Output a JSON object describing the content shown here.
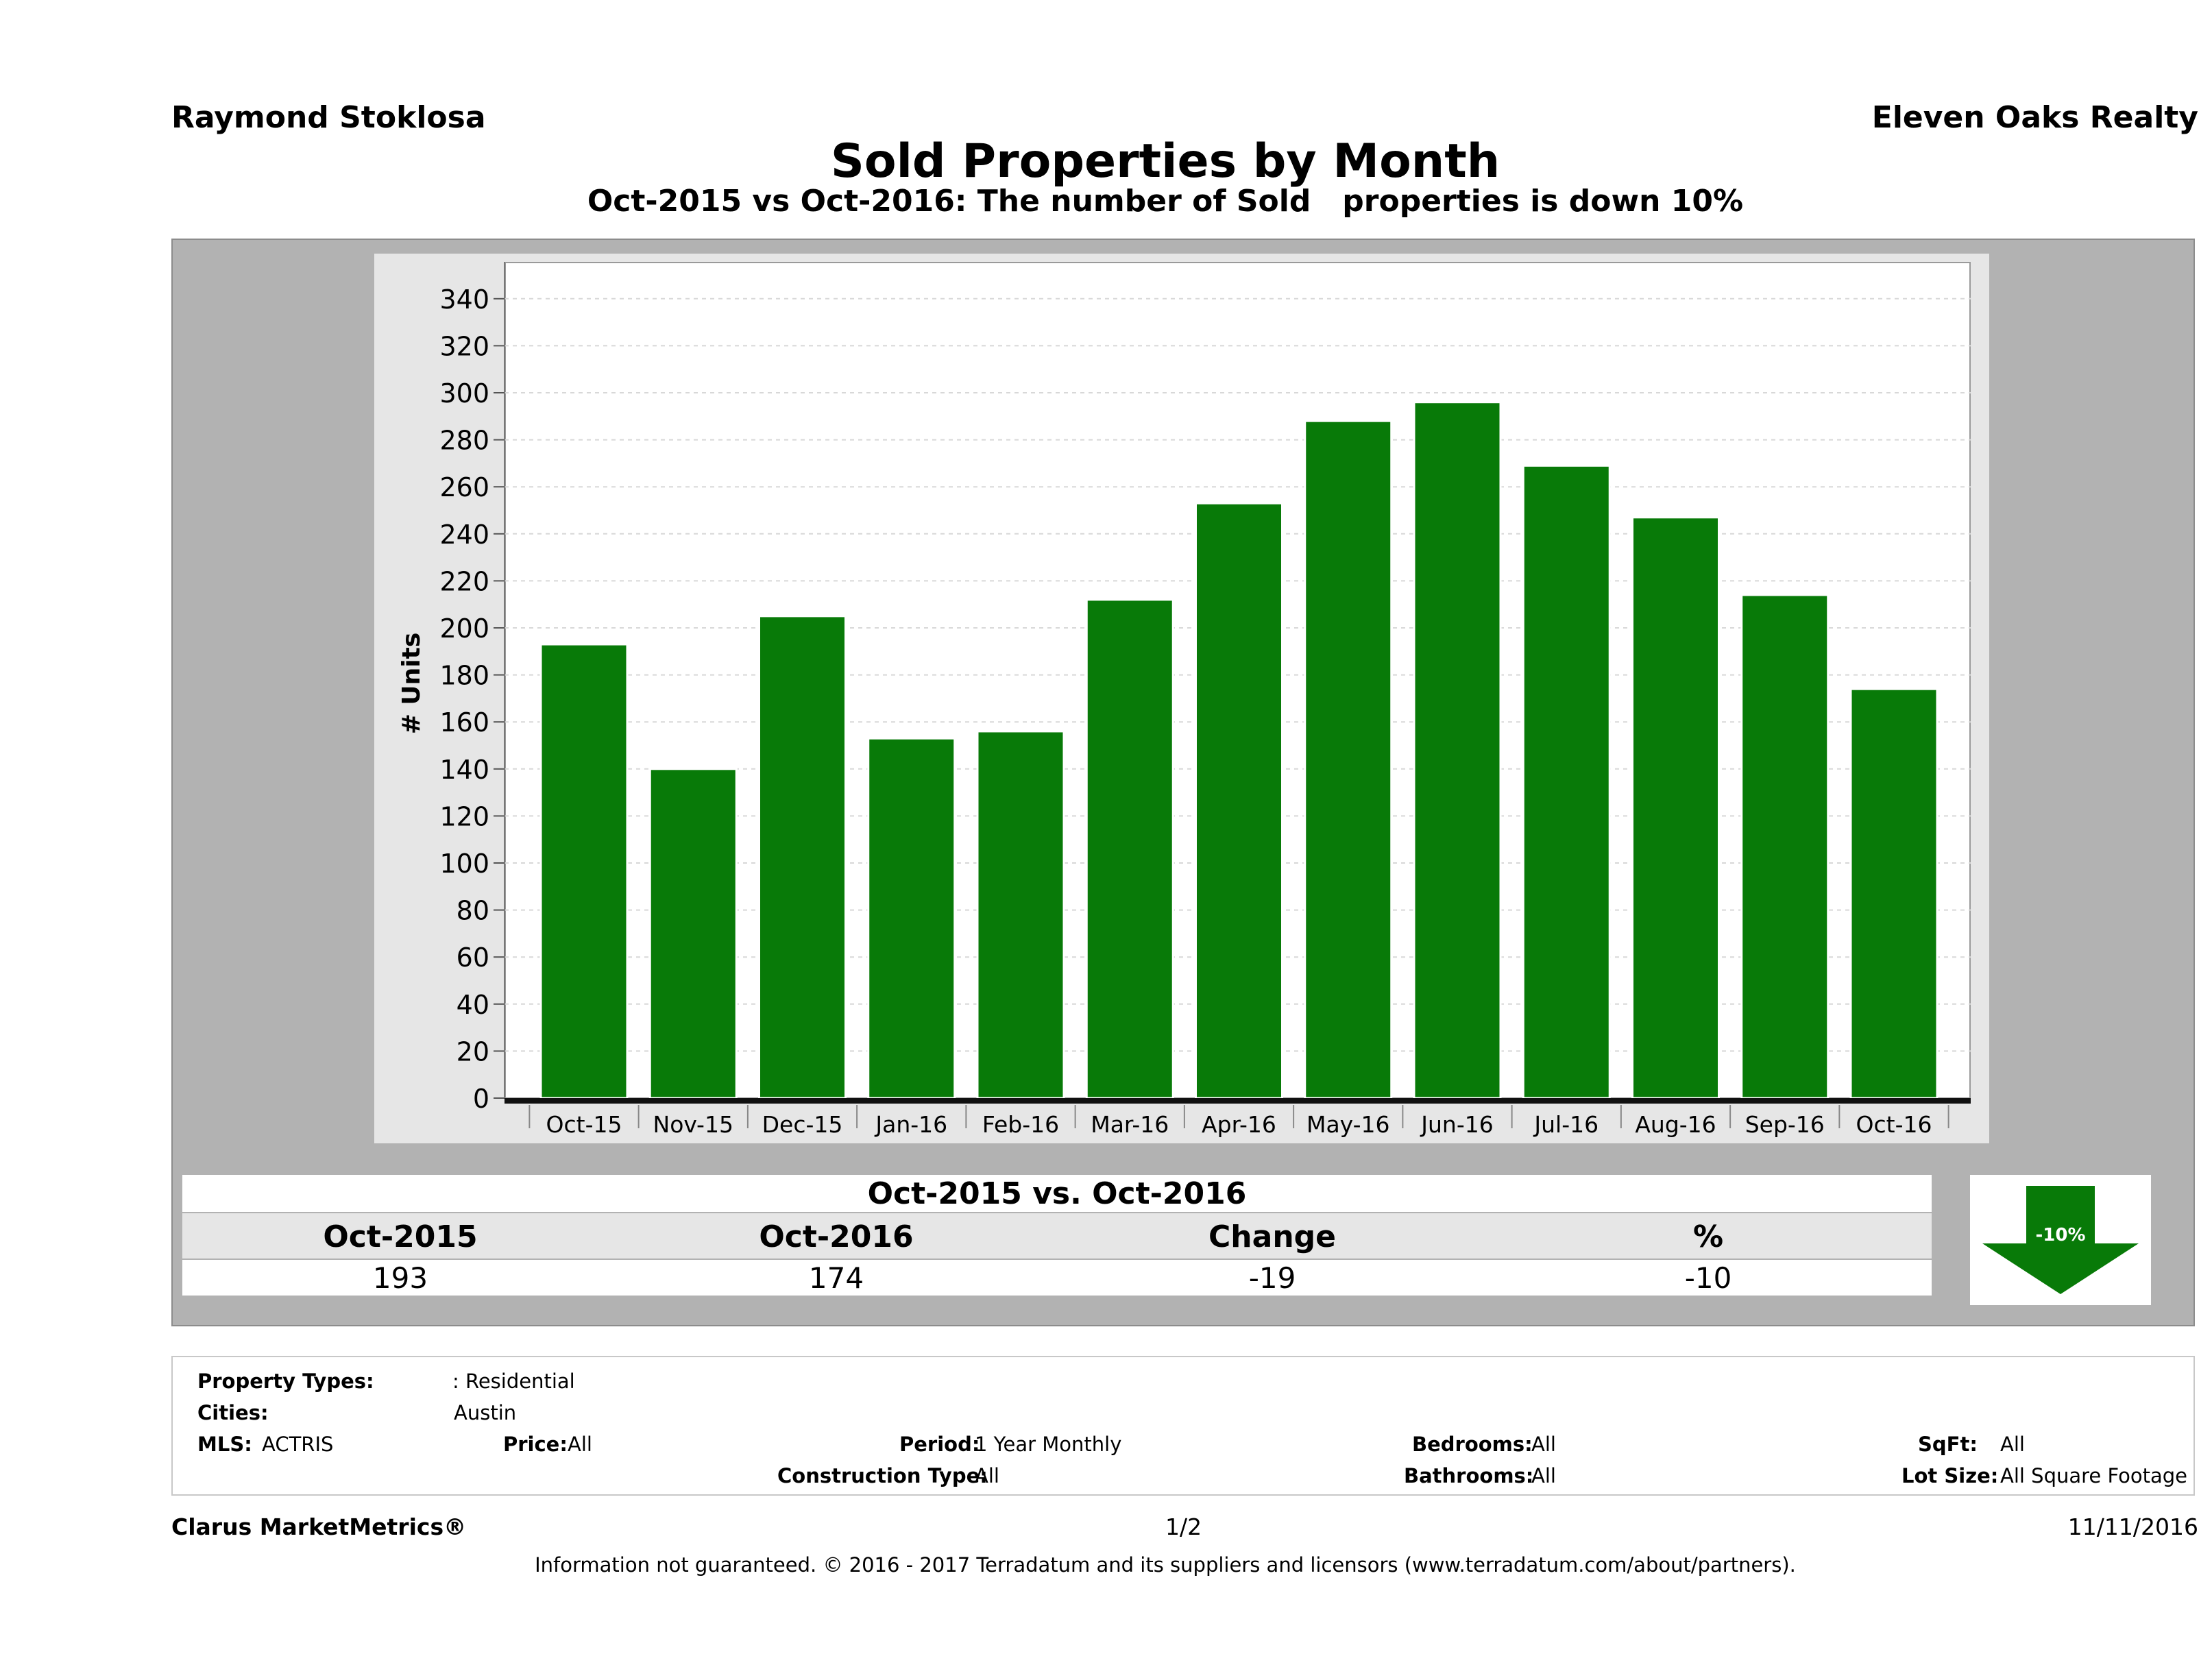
{
  "header": {
    "agent": "Raymond Stoklosa",
    "company": "Eleven Oaks Realty",
    "title": "Sold Properties by Month",
    "subtitle": "Oct-2015 vs Oct-2016: The number of Sold   properties is down 10%"
  },
  "chart_data": {
    "type": "bar",
    "categories": [
      "Oct-15",
      "Nov-15",
      "Dec-15",
      "Jan-16",
      "Feb-16",
      "Mar-16",
      "Apr-16",
      "May-16",
      "Jun-16",
      "Jul-16",
      "Aug-16",
      "Sep-16",
      "Oct-16"
    ],
    "values": [
      193,
      140,
      205,
      153,
      156,
      212,
      253,
      288,
      296,
      269,
      247,
      214,
      174
    ],
    "ylabel": "# Units",
    "ylim": [
      0,
      350
    ],
    "yticks": [
      0,
      20,
      40,
      60,
      80,
      100,
      120,
      140,
      160,
      180,
      200,
      220,
      240,
      260,
      280,
      300,
      320,
      340
    ],
    "grid": true,
    "bar_color": "#087a08"
  },
  "comparison": {
    "title": "Oct-2015 vs. Oct-2016",
    "headers": [
      "Oct-2015",
      "Oct-2016",
      "Change",
      "%"
    ],
    "values": [
      "193",
      "174",
      "-19",
      "-10"
    ],
    "badge": "-10%",
    "badge_color": "#087a08"
  },
  "filters": {
    "property_types_label": "Property Types:",
    "property_types_value": ": Residential",
    "cities_label": "Cities:",
    "cities_value": "Austin",
    "mls_label": "MLS:",
    "mls_value": "ACTRIS",
    "price_label": "Price:",
    "price_value": "All",
    "period_label": "Period:",
    "period_value": "1 Year Monthly",
    "construction_label": "Construction Type:",
    "construction_value": "All",
    "bedrooms_label": "Bedrooms:",
    "bedrooms_value": "All",
    "bathrooms_label": "Bathrooms:",
    "bathrooms_value": "All",
    "sqft_label": "SqFt:",
    "sqft_value": "All",
    "lotsize_label": "Lot Size:",
    "lotsize_value": "All Square Footage"
  },
  "footer": {
    "brand": "Clarus MarketMetrics®",
    "page": "1/2",
    "date": "11/11/2016",
    "disclaimer": "Information not guaranteed. © 2016 - 2017 Terradatum and its suppliers and licensors (www.terradatum.com/about/partners)."
  }
}
